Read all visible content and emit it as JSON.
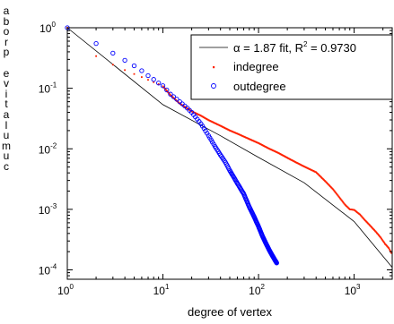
{
  "chart_data": {
    "type": "scatter",
    "xlabel": "degree of vertex",
    "ylabel": "cumulative probability",
    "ylabel_display_chars": [
      "a",
      "b",
      "o",
      "r",
      "p",
      "",
      "e",
      "v",
      "i",
      "t",
      "a",
      "l",
      "u",
      "m",
      "u",
      "c"
    ],
    "xscale": "log",
    "yscale": "log",
    "xlim": [
      1,
      2500
    ],
    "ylim": [
      7e-05,
      1
    ],
    "x_ticks": [
      {
        "base": "10",
        "exp": "0",
        "value": 1
      },
      {
        "base": "10",
        "exp": "1",
        "value": 10
      },
      {
        "base": "10",
        "exp": "2",
        "value": 100
      },
      {
        "base": "10",
        "exp": "3",
        "value": 1000
      }
    ],
    "y_ticks": [
      {
        "base": "10",
        "exp": "0",
        "value": 1
      },
      {
        "base": "10",
        "exp": "-1",
        "value": 0.1
      },
      {
        "base": "10",
        "exp": "-2",
        "value": 0.01
      },
      {
        "base": "10",
        "exp": "-3",
        "value": 0.001
      },
      {
        "base": "10",
        "exp": "-4",
        "value": 0.0001
      }
    ],
    "grid": false,
    "legend_position": "top-right",
    "legend": {
      "fit": {
        "prefix": "α = 1.87 fit, R",
        "sup": "2",
        "suffix": " = 0.9730"
      },
      "indegree": "indegree",
      "outdegree": "outdegree"
    },
    "colors": {
      "fit": "#000000",
      "indegree": "#ff2200",
      "outdegree": "#0000ff"
    },
    "fit": {
      "alpha": 1.87,
      "points": [
        [
          1,
          1
        ],
        [
          10,
          0.0537
        ],
        [
          40,
          0.0164
        ],
        [
          100,
          0.00721
        ],
        [
          300,
          0.00275
        ],
        [
          1000,
          0.00063
        ],
        [
          2500,
          0.00011
        ]
      ]
    },
    "series": [
      {
        "name": "indegree",
        "marker": "dot",
        "points": [
          [
            1,
            1
          ],
          [
            2,
            0.34
          ],
          [
            3,
            0.245
          ],
          [
            4,
            0.2
          ],
          [
            5,
            0.172
          ],
          [
            6,
            0.153
          ],
          [
            7,
            0.138
          ],
          [
            8,
            0.126
          ],
          [
            9,
            0.117
          ],
          [
            10,
            0.108
          ],
          [
            12,
            0.077
          ],
          [
            15,
            0.0558
          ],
          [
            20,
            0.0416
          ],
          [
            25,
            0.0352
          ],
          [
            30,
            0.0298
          ],
          [
            40,
            0.024
          ],
          [
            50,
            0.0201
          ],
          [
            60,
            0.0178
          ],
          [
            80,
            0.0145
          ],
          [
            100,
            0.0124
          ],
          [
            130,
            0.01
          ],
          [
            160,
            0.0086
          ],
          [
            200,
            0.0071
          ],
          [
            250,
            0.0059
          ],
          [
            300,
            0.0051
          ],
          [
            400,
            0.0041
          ],
          [
            500,
            0.0029
          ],
          [
            600,
            0.00215
          ],
          [
            700,
            0.00158
          ],
          [
            800,
            0.0012
          ],
          [
            900,
            0.001
          ],
          [
            1000,
            0.00098
          ],
          [
            1150,
            0.00082
          ],
          [
            1300,
            0.00066
          ],
          [
            1500,
            0.00052
          ],
          [
            1700,
            0.00042
          ],
          [
            1900,
            0.00034
          ],
          [
            2100,
            0.00027
          ],
          [
            2300,
            0.00023
          ],
          [
            2450,
            0.00019
          ]
        ]
      },
      {
        "name": "outdegree",
        "marker": "circle",
        "points": [
          [
            1,
            1
          ],
          [
            2,
            0.55
          ],
          [
            3,
            0.38
          ],
          [
            4,
            0.29
          ],
          [
            5,
            0.235
          ],
          [
            6,
            0.195
          ],
          [
            7,
            0.162
          ],
          [
            8,
            0.14
          ],
          [
            9,
            0.122
          ],
          [
            10,
            0.11
          ],
          [
            12,
            0.08
          ],
          [
            15,
            0.06
          ],
          [
            18,
            0.047
          ],
          [
            20,
            0.04
          ],
          [
            25,
            0.026
          ],
          [
            30,
            0.0165
          ],
          [
            35,
            0.011
          ],
          [
            40,
            0.0079
          ],
          [
            45,
            0.006
          ],
          [
            50,
            0.0044
          ],
          [
            60,
            0.0027
          ],
          [
            70,
            0.0018
          ],
          [
            80,
            0.0011
          ],
          [
            90,
            0.00075
          ],
          [
            100,
            0.00052
          ],
          [
            110,
            0.00036
          ],
          [
            120,
            0.00027
          ],
          [
            130,
            0.00021
          ],
          [
            140,
            0.00017
          ],
          [
            155,
            0.00013
          ]
        ]
      }
    ]
  }
}
